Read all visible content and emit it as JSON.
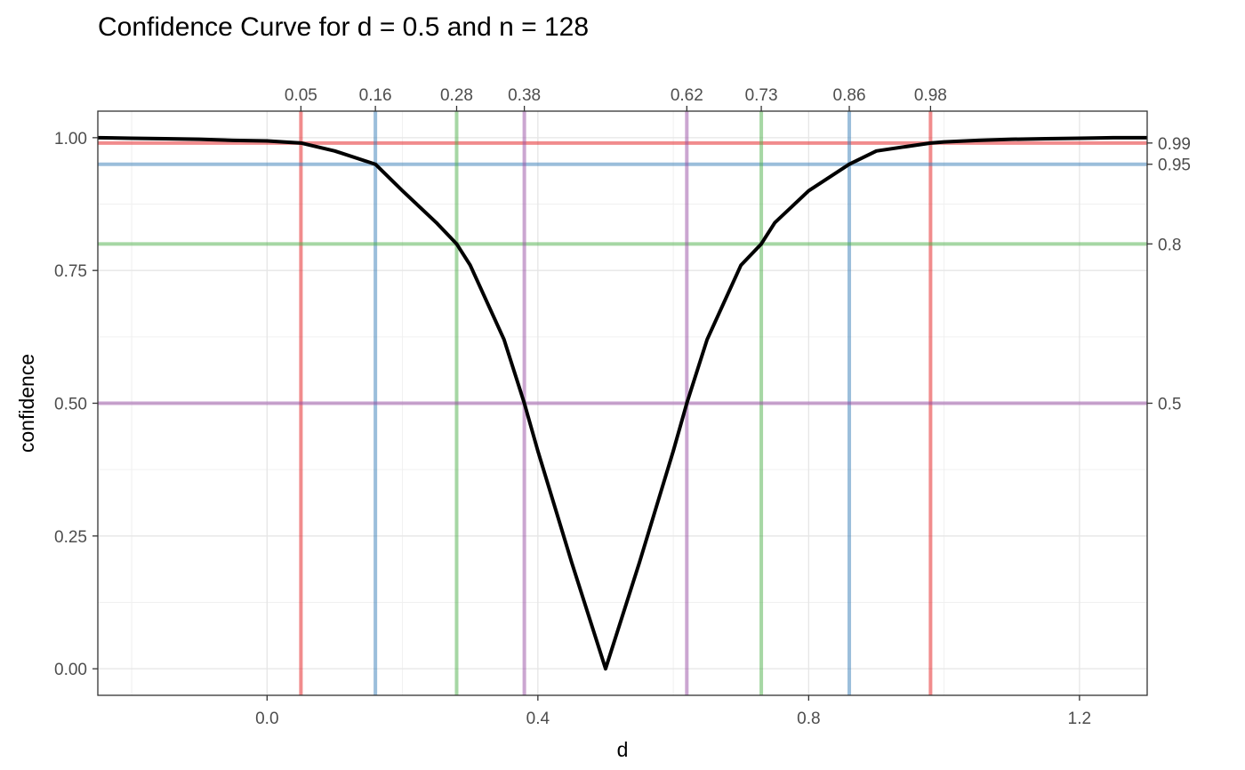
{
  "chart_data": {
    "type": "line",
    "title": "Confidence Curve for d = 0.5 and n = 128",
    "xlabel": "d",
    "ylabel": "confidence",
    "xlim": [
      -0.25,
      1.3
    ],
    "ylim": [
      -0.05,
      1.05
    ],
    "x_ticks": [
      {
        "value": 0.0,
        "label": "0.0"
      },
      {
        "value": 0.4,
        "label": "0.4"
      },
      {
        "value": 0.8,
        "label": "0.8"
      },
      {
        "value": 1.2,
        "label": "1.2"
      }
    ],
    "y_ticks": [
      {
        "value": 0.0,
        "label": "0.00"
      },
      {
        "value": 0.25,
        "label": "0.25"
      },
      {
        "value": 0.5,
        "label": "0.50"
      },
      {
        "value": 0.75,
        "label": "0.75"
      },
      {
        "value": 1.0,
        "label": "1.00"
      }
    ],
    "grid": true,
    "curve": {
      "color": "#000000",
      "points": [
        [
          -0.25,
          1.0
        ],
        [
          -0.2,
          0.999
        ],
        [
          -0.15,
          0.998
        ],
        [
          -0.1,
          0.997
        ],
        [
          -0.05,
          0.995
        ],
        [
          0.0,
          0.994
        ],
        [
          0.05,
          0.99
        ],
        [
          0.1,
          0.975
        ],
        [
          0.16,
          0.95
        ],
        [
          0.2,
          0.9
        ],
        [
          0.25,
          0.84
        ],
        [
          0.28,
          0.8
        ],
        [
          0.3,
          0.76
        ],
        [
          0.35,
          0.62
        ],
        [
          0.38,
          0.5
        ],
        [
          0.4,
          0.41
        ],
        [
          0.45,
          0.2
        ],
        [
          0.5,
          0.0
        ],
        [
          0.55,
          0.2
        ],
        [
          0.6,
          0.41
        ],
        [
          0.62,
          0.5
        ],
        [
          0.65,
          0.62
        ],
        [
          0.7,
          0.76
        ],
        [
          0.73,
          0.8
        ],
        [
          0.75,
          0.84
        ],
        [
          0.8,
          0.9
        ],
        [
          0.86,
          0.95
        ],
        [
          0.9,
          0.975
        ],
        [
          0.98,
          0.99
        ],
        [
          1.0,
          0.992
        ],
        [
          1.05,
          0.995
        ],
        [
          1.1,
          0.997
        ],
        [
          1.15,
          0.998
        ],
        [
          1.2,
          0.999
        ],
        [
          1.25,
          1.0
        ],
        [
          1.3,
          1.0
        ]
      ]
    },
    "confidence_levels": [
      {
        "level": 0.99,
        "label": "0.99",
        "color": "#e41a1c",
        "lower": 0.05,
        "lower_label": "0.05",
        "upper": 0.98,
        "upper_label": "0.98"
      },
      {
        "level": 0.95,
        "label": "0.95",
        "color": "#377eb8",
        "lower": 0.16,
        "lower_label": "0.16",
        "upper": 0.86,
        "upper_label": "0.86"
      },
      {
        "level": 0.8,
        "label": "0.8",
        "color": "#4daf4a",
        "lower": 0.28,
        "lower_label": "0.28",
        "upper": 0.73,
        "upper_label": "0.73"
      },
      {
        "level": 0.5,
        "label": "0.5",
        "color": "#984ea3",
        "lower": 0.38,
        "lower_label": "0.38",
        "upper": 0.62,
        "upper_label": "0.62"
      }
    ]
  }
}
